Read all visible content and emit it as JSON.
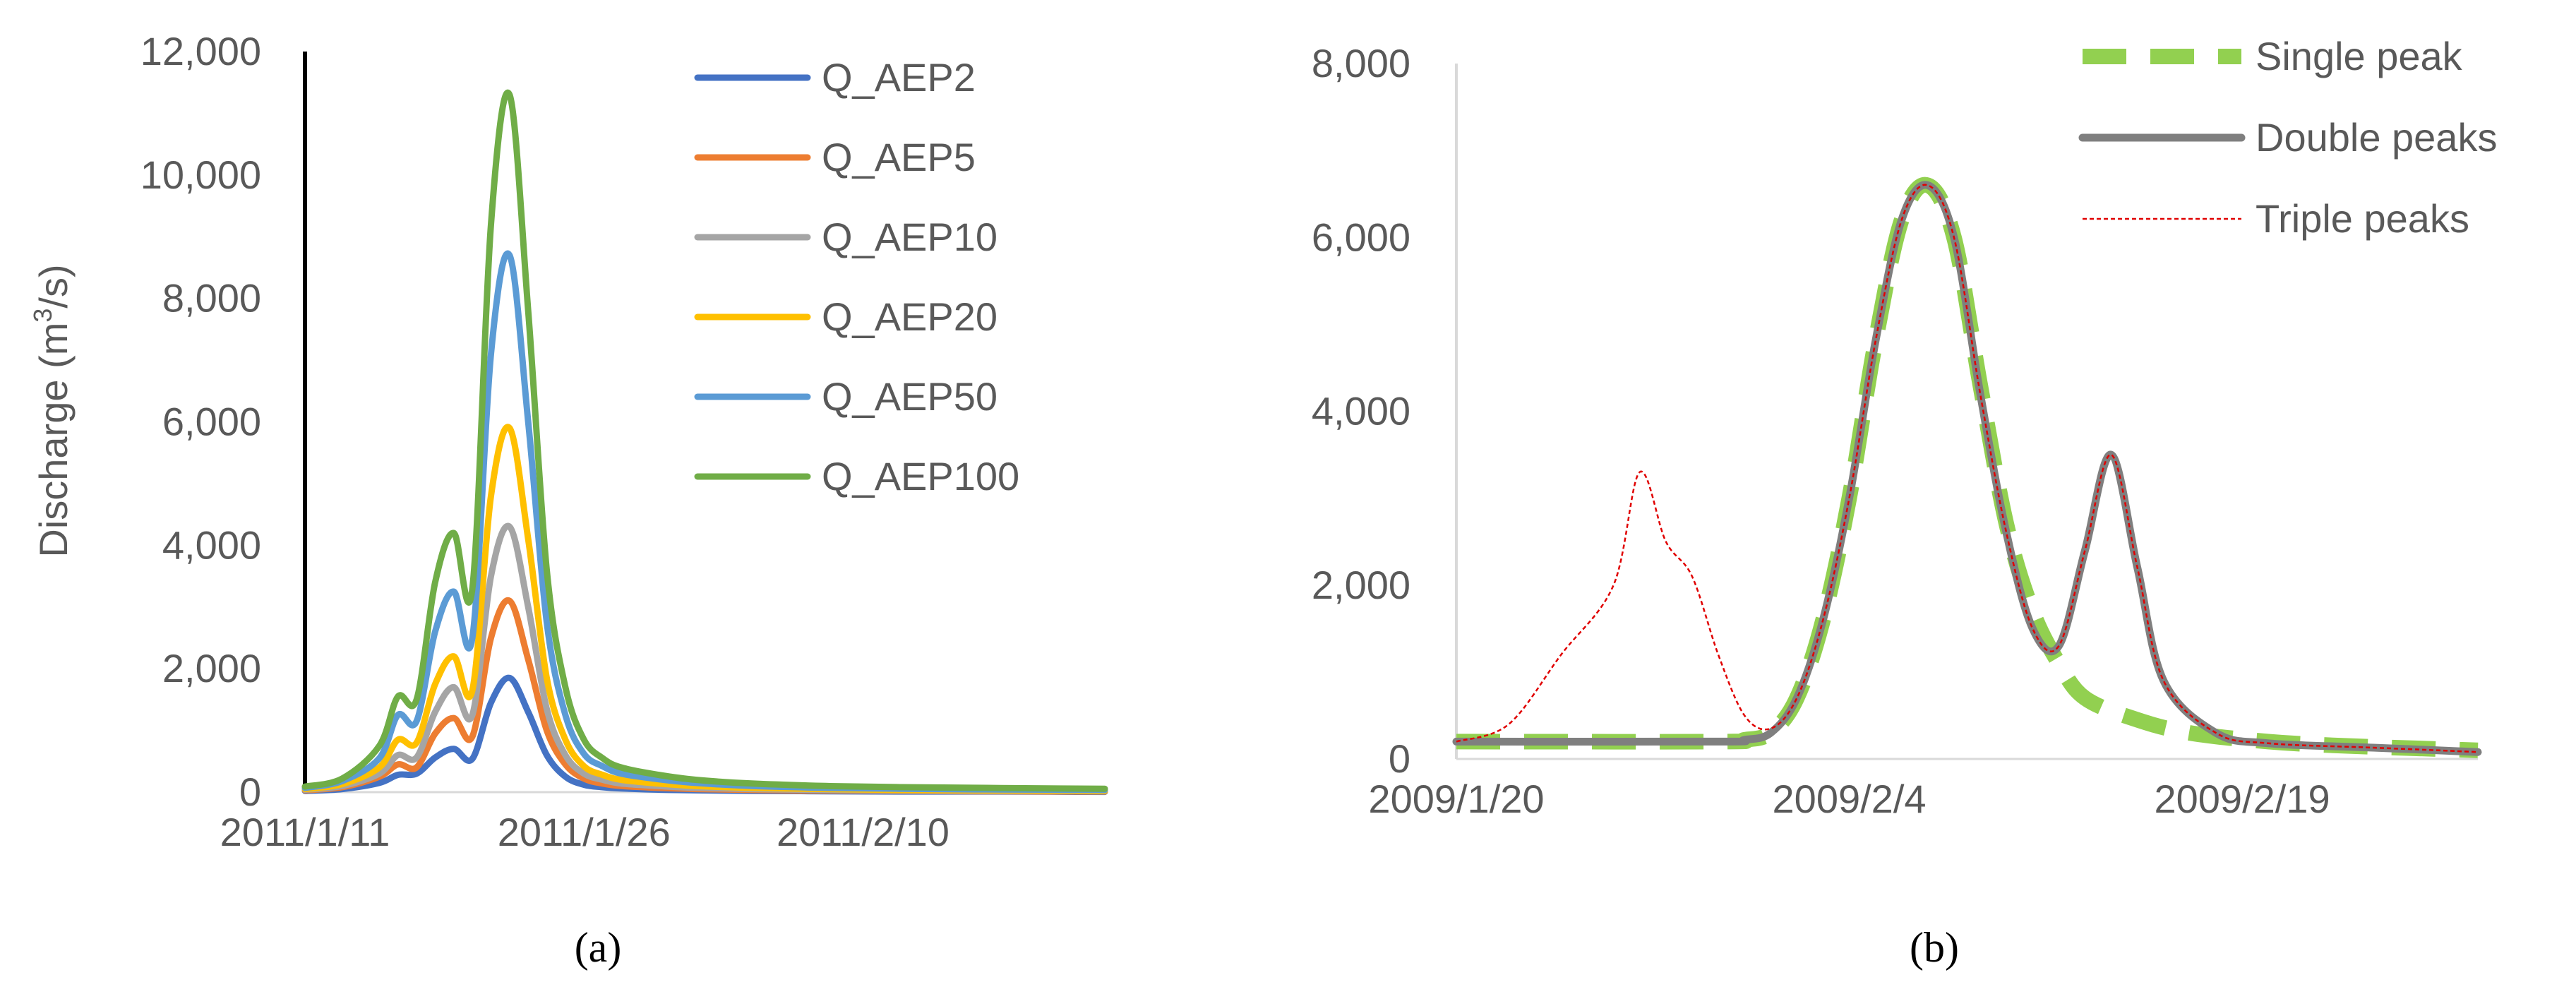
{
  "chart_data": [
    {
      "type": "line",
      "panel": "a",
      "caption": "(a)",
      "ylabel": "Discharge (m³/s)",
      "ylabel_text": "Discharge (m",
      "ylabel_sup": "3",
      "ylabel_tail": "/s)",
      "ylim": [
        0,
        12000
      ],
      "yticks": [
        "0",
        "2,000",
        "4,000",
        "6,000",
        "8,000",
        "10,000",
        "12,000"
      ],
      "xlim": [
        "2011/1/11",
        "2011/2/23"
      ],
      "xticks": [
        {
          "date": "2011/1/11",
          "label": "2011/1/11"
        },
        {
          "date": "2011/1/26",
          "label": "2011/1/26"
        },
        {
          "date": "2011/2/10",
          "label": "2011/2/10"
        }
      ],
      "grid": false,
      "legend": "right",
      "x": [
        "2011/1/11",
        "2011/1/13",
        "2011/1/15",
        "2011/1/16",
        "2011/1/17",
        "2011/1/18",
        "2011/1/19",
        "2011/1/20",
        "2011/1/21",
        "2011/1/22",
        "2011/1/23",
        "2011/1/24",
        "2011/1/25",
        "2011/1/26",
        "2011/1/27",
        "2011/1/28",
        "2011/1/30",
        "2011/2/1",
        "2011/2/4",
        "2011/2/8",
        "2011/2/12",
        "2011/2/16",
        "2011/2/20",
        "2011/2/23"
      ],
      "series": [
        {
          "name": "Q_AEP2",
          "color": "#4472C4",
          "width": 9,
          "values": [
            20,
            50,
            150,
            280,
            300,
            560,
            700,
            540,
            1450,
            1850,
            1300,
            600,
            250,
            120,
            80,
            60,
            40,
            30,
            20,
            15,
            10,
            10,
            8,
            5
          ]
        },
        {
          "name": "Q_AEP5",
          "color": "#ED7D31",
          "width": 9,
          "values": [
            30,
            80,
            250,
            450,
            400,
            950,
            1200,
            900,
            2500,
            3100,
            2150,
            1000,
            450,
            220,
            140,
            100,
            70,
            50,
            35,
            25,
            20,
            15,
            12,
            10
          ]
        },
        {
          "name": "Q_AEP10",
          "color": "#A5A5A5",
          "width": 9,
          "values": [
            40,
            100,
            300,
            600,
            560,
            1300,
            1700,
            1250,
            3500,
            4300,
            3000,
            1350,
            600,
            300,
            200,
            140,
            100,
            70,
            50,
            35,
            25,
            20,
            18,
            15
          ]
        },
        {
          "name": "Q_AEP20",
          "color": "#FFC000",
          "width": 9,
          "values": [
            50,
            130,
            400,
            850,
            800,
            1750,
            2200,
            1650,
            4800,
            5900,
            4100,
            1850,
            850,
            420,
            280,
            200,
            140,
            100,
            70,
            50,
            35,
            30,
            25,
            20
          ]
        },
        {
          "name": "Q_AEP50",
          "color": "#5B9BD5",
          "width": 9,
          "values": [
            70,
            180,
            550,
            1250,
            1150,
            2600,
            3250,
            2500,
            7100,
            8700,
            6000,
            2750,
            1250,
            620,
            420,
            300,
            210,
            150,
            100,
            70,
            55,
            45,
            40,
            35
          ]
        },
        {
          "name": "Q_AEP100",
          "color": "#70AD47",
          "width": 9,
          "values": [
            90,
            220,
            750,
            1550,
            1500,
            3400,
            4200,
            3300,
            9200,
            11300,
            7800,
            3600,
            1700,
            850,
            550,
            400,
            280,
            200,
            140,
            100,
            80,
            70,
            60,
            55
          ]
        }
      ]
    },
    {
      "type": "line",
      "panel": "b",
      "caption": "(b)",
      "ylim": [
        0,
        8000
      ],
      "yticks": [
        "0",
        "2,000",
        "4,000",
        "6,000",
        "8,000"
      ],
      "xlim": [
        "2009/1/20",
        "2009/2/28"
      ],
      "xticks": [
        {
          "date": "2009/1/20",
          "label": "2009/1/20"
        },
        {
          "date": "2009/2/4",
          "label": "2009/2/4"
        },
        {
          "date": "2009/2/19",
          "label": "2009/2/19"
        }
      ],
      "grid": false,
      "legend": "top-right",
      "series": [
        {
          "name": "Single peak",
          "color": "#92D050",
          "width": 22,
          "dash": "62,34",
          "x": [
            "2009/1/20",
            "2009/1/30",
            "2009/1/31",
            "2009/2/1",
            "2009/2/2",
            "2009/2/3",
            "2009/2/4",
            "2009/2/5",
            "2009/2/6",
            "2009/2/7",
            "2009/2/8",
            "2009/2/9",
            "2009/2/10",
            "2009/2/11",
            "2009/2/12",
            "2009/2/13",
            "2009/2/15",
            "2009/2/17",
            "2009/2/20",
            "2009/2/23",
            "2009/2/28"
          ],
          "values": [
            200,
            200,
            220,
            300,
            700,
            1600,
            3000,
            4800,
            6200,
            6600,
            6000,
            4300,
            2700,
            1700,
            1100,
            700,
            450,
            300,
            200,
            150,
            100
          ]
        },
        {
          "name": "Double peaks",
          "color": "#7F7F7F",
          "width": 11,
          "x": [
            "2009/1/20",
            "2009/1/30",
            "2009/1/31",
            "2009/2/1",
            "2009/2/2",
            "2009/2/3",
            "2009/2/4",
            "2009/2/5",
            "2009/2/6",
            "2009/2/7",
            "2009/2/8",
            "2009/2/9",
            "2009/2/10",
            "2009/2/11",
            "2009/2/12",
            "2009/2/13",
            "2009/2/14",
            "2009/2/15",
            "2009/2/16",
            "2009/2/18",
            "2009/2/20",
            "2009/2/24",
            "2009/2/28"
          ],
          "values": [
            200,
            200,
            220,
            300,
            700,
            1600,
            3000,
            4800,
            6200,
            6600,
            6000,
            4200,
            2600,
            1500,
            1300,
            2400,
            3500,
            2200,
            900,
            300,
            180,
            130,
            80
          ]
        },
        {
          "name": "Triple peaks",
          "color": "#E00000",
          "width": 2.5,
          "dash": "6,4",
          "x": [
            "2009/1/20",
            "2009/1/22",
            "2009/1/24",
            "2009/1/26",
            "2009/1/27",
            "2009/1/28",
            "2009/1/29",
            "2009/1/30",
            "2009/1/31",
            "2009/2/1",
            "2009/2/2",
            "2009/2/3",
            "2009/2/4",
            "2009/2/5",
            "2009/2/6",
            "2009/2/7",
            "2009/2/8",
            "2009/2/9",
            "2009/2/10",
            "2009/2/11",
            "2009/2/12",
            "2009/2/13",
            "2009/2/14",
            "2009/2/15",
            "2009/2/16",
            "2009/2/18",
            "2009/2/20",
            "2009/2/24",
            "2009/2/28"
          ],
          "values": [
            200,
            400,
            1200,
            2000,
            3300,
            2500,
            2100,
            1200,
            500,
            350,
            700,
            1600,
            3000,
            4800,
            6200,
            6600,
            6000,
            4200,
            2600,
            1500,
            1300,
            2400,
            3500,
            2200,
            900,
            300,
            180,
            130,
            80
          ]
        }
      ]
    }
  ]
}
